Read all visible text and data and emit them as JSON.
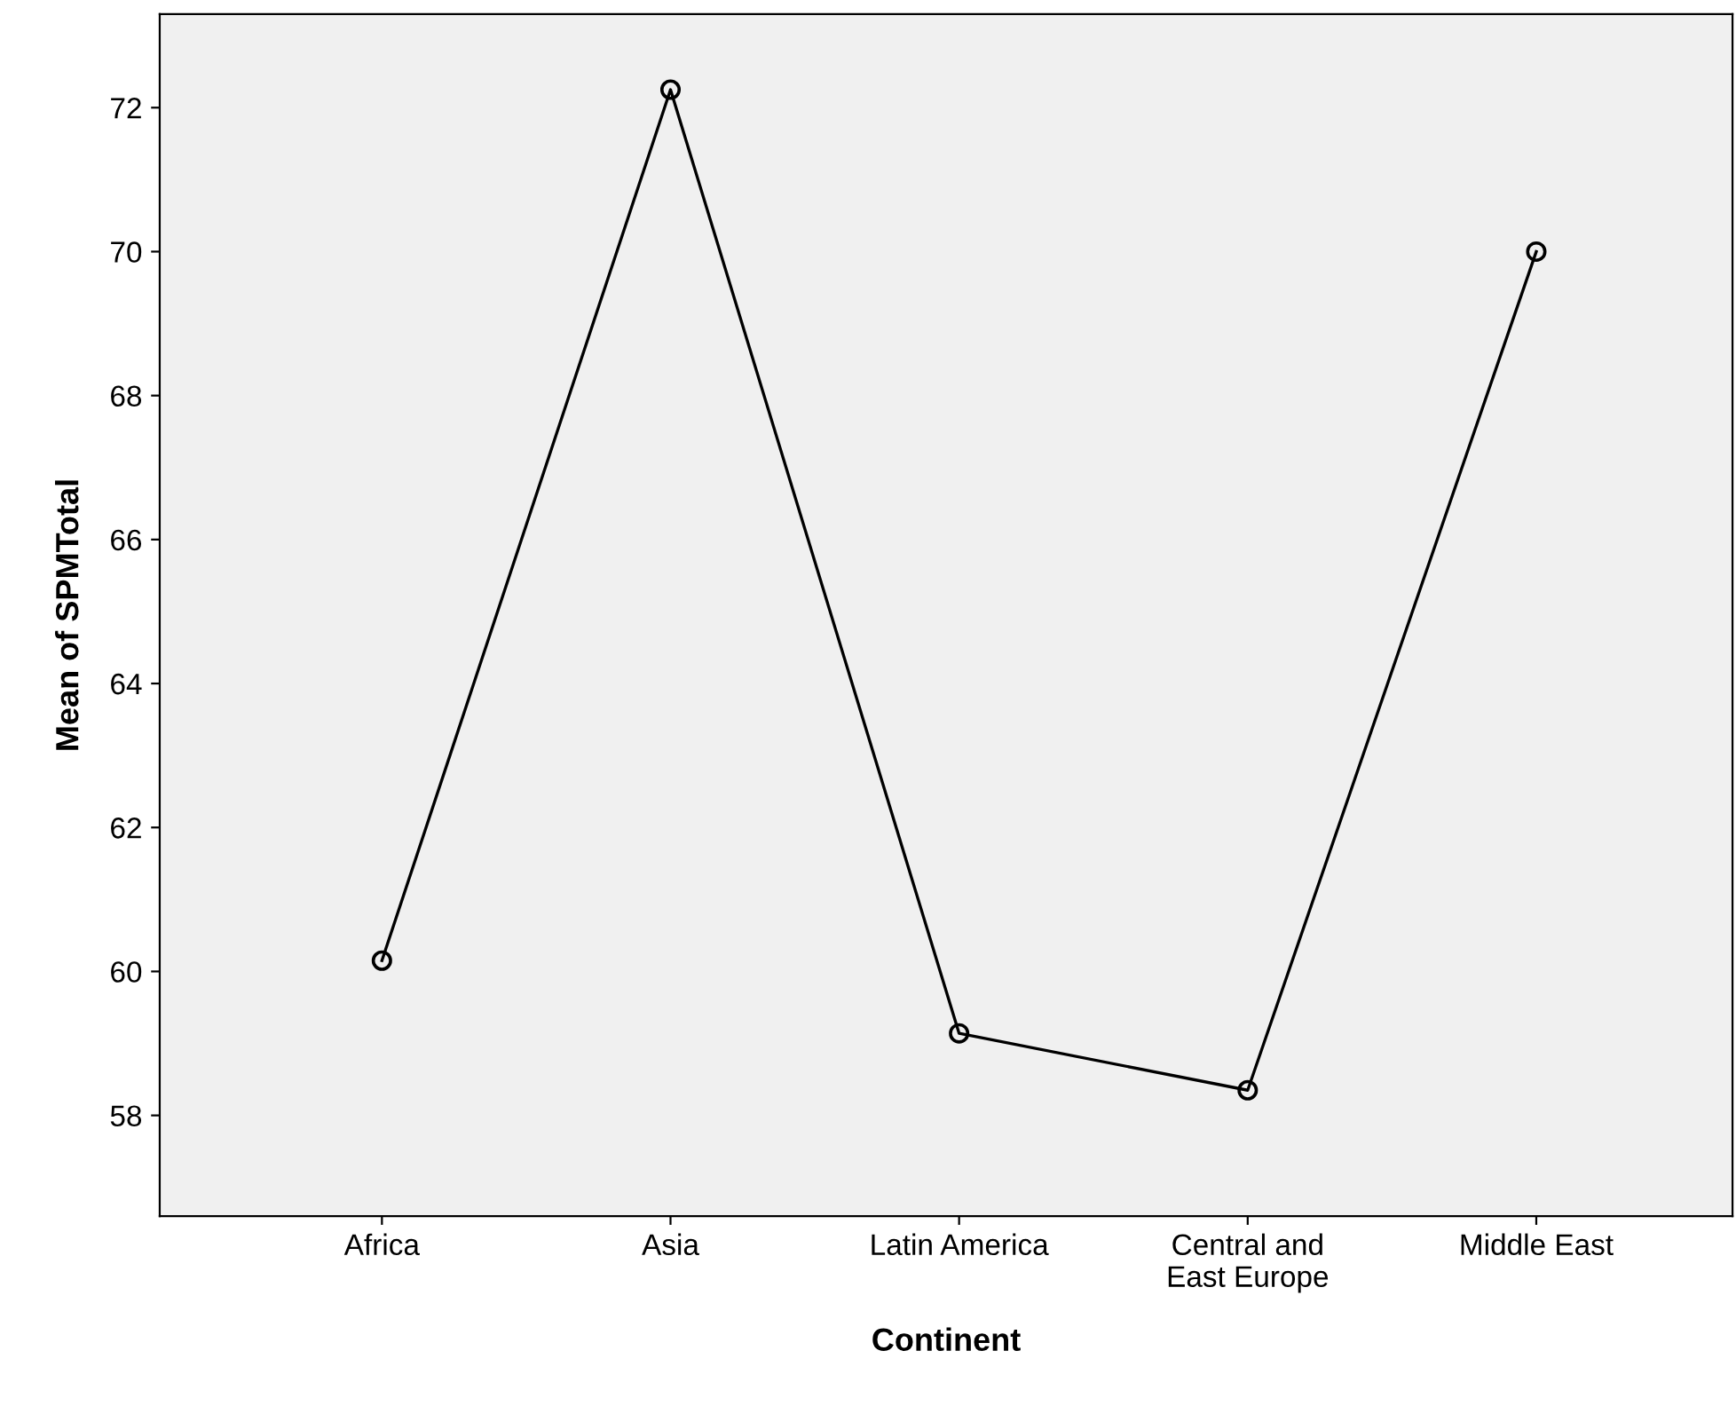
{
  "chart_data": {
    "type": "line",
    "xlabel": "Continent",
    "ylabel": "Mean of SPMTotal",
    "categories": [
      "Africa",
      "Asia",
      "Latin America",
      "Central and\nEast Europe",
      "Middle East"
    ],
    "series": [
      {
        "color": "#000000",
        "values": [
          60.15,
          72.25,
          59.14,
          58.35,
          70.0
        ]
      }
    ],
    "ylim": [
      56.6,
      73.3
    ],
    "yticks": [
      58,
      60,
      62,
      64,
      66,
      68,
      70,
      72
    ],
    "marker": "circle",
    "line_style": "solid",
    "grid": false,
    "legend": false
  }
}
